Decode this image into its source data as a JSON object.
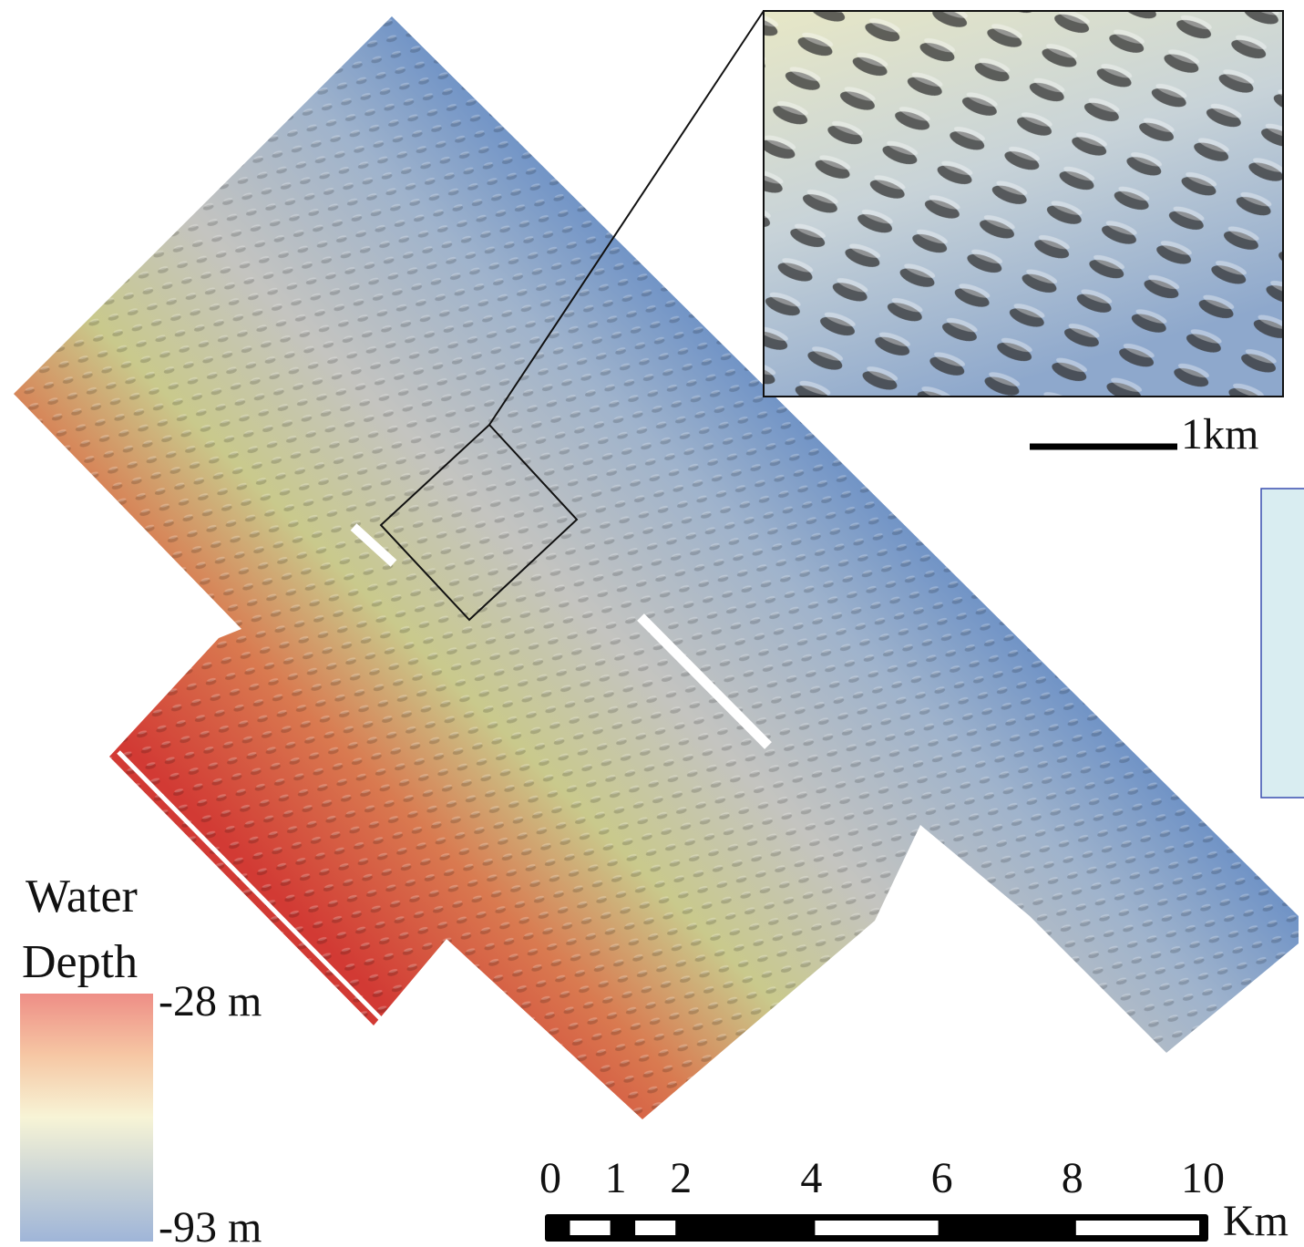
{
  "inset": {
    "scale_label": "1km"
  },
  "legend": {
    "title_lines": [
      "Water",
      "Depth"
    ],
    "max_label": "-28 m",
    "min_label": "-93 m"
  },
  "scale_bar": {
    "ticks": [
      0,
      1,
      2,
      4,
      6,
      8,
      10
    ],
    "unit": "Km"
  }
}
